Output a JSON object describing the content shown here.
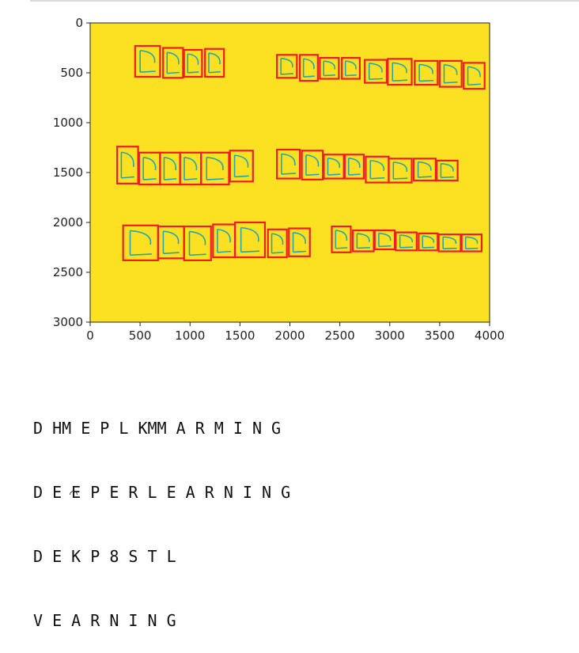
{
  "colors": {
    "image_bg": "#fbe121",
    "box": "#ee1d25",
    "stroke": "#26a6a9",
    "axis": "#222222"
  },
  "chart_data": {
    "type": "image",
    "xlim": [
      0,
      4000
    ],
    "ylim": [
      3000,
      0
    ],
    "xticks": [
      0,
      500,
      1000,
      1500,
      2000,
      2500,
      3000,
      3500,
      4000
    ],
    "yticks": [
      0,
      500,
      1000,
      1500,
      2000,
      2500,
      3000
    ],
    "xtick_labels": [
      "0",
      "500",
      "1000",
      "1500",
      "2000",
      "2500",
      "3000",
      "3500",
      "4000"
    ],
    "ytick_labels": [
      "0",
      "500",
      "1000",
      "1500",
      "2000",
      "2500",
      "3000"
    ],
    "handwritten_rows": [
      {
        "text": "DEEP LEARNING",
        "boxes": [
          [
            450,
            230,
            700,
            540
          ],
          [
            730,
            250,
            930,
            550
          ],
          [
            940,
            270,
            1120,
            540
          ],
          [
            1150,
            260,
            1340,
            540
          ],
          [
            1870,
            320,
            2070,
            550
          ],
          [
            2100,
            320,
            2280,
            580
          ],
          [
            2300,
            350,
            2490,
            560
          ],
          [
            2520,
            350,
            2700,
            560
          ],
          [
            2750,
            370,
            2970,
            600
          ],
          [
            2980,
            360,
            3220,
            620
          ],
          [
            3250,
            380,
            3480,
            620
          ],
          [
            3500,
            380,
            3720,
            640
          ],
          [
            3740,
            400,
            3950,
            660
          ]
        ]
      },
      {
        "text": "DEEPER LEARNING",
        "boxes": [
          [
            270,
            1240,
            480,
            1610
          ],
          [
            490,
            1300,
            700,
            1620
          ],
          [
            700,
            1300,
            900,
            1620
          ],
          [
            900,
            1300,
            1110,
            1620
          ],
          [
            1110,
            1300,
            1390,
            1620
          ],
          [
            1400,
            1280,
            1630,
            1590
          ],
          [
            1870,
            1270,
            2100,
            1560
          ],
          [
            2120,
            1280,
            2330,
            1570
          ],
          [
            2340,
            1320,
            2540,
            1560
          ],
          [
            2550,
            1320,
            2740,
            1560
          ],
          [
            2760,
            1340,
            2990,
            1600
          ],
          [
            2990,
            1360,
            3220,
            1600
          ],
          [
            3240,
            1360,
            3460,
            1580
          ],
          [
            3470,
            1380,
            3680,
            1580
          ]
        ]
      },
      {
        "text": "DEEFEST LEARNING",
        "boxes": [
          [
            330,
            2030,
            680,
            2380
          ],
          [
            680,
            2040,
            940,
            2360
          ],
          [
            940,
            2040,
            1210,
            2380
          ],
          [
            1230,
            2020,
            1450,
            2350
          ],
          [
            1450,
            2000,
            1750,
            2350
          ],
          [
            1780,
            2070,
            1970,
            2350
          ],
          [
            1990,
            2060,
            2200,
            2340
          ],
          [
            2420,
            2040,
            2610,
            2300
          ],
          [
            2630,
            2080,
            2840,
            2290
          ],
          [
            2850,
            2080,
            3050,
            2270
          ],
          [
            3060,
            2100,
            3270,
            2280
          ],
          [
            3290,
            2110,
            3480,
            2280
          ],
          [
            3490,
            2120,
            3710,
            2290
          ],
          [
            3720,
            2120,
            3920,
            2290
          ]
        ]
      }
    ]
  },
  "output": {
    "lines": [
      "D HM E P L KMM A R M I N G",
      "D E E P E R L E A R N I N G",
      "D E K P 8 S T L",
      "V E A R N I N G"
    ]
  }
}
